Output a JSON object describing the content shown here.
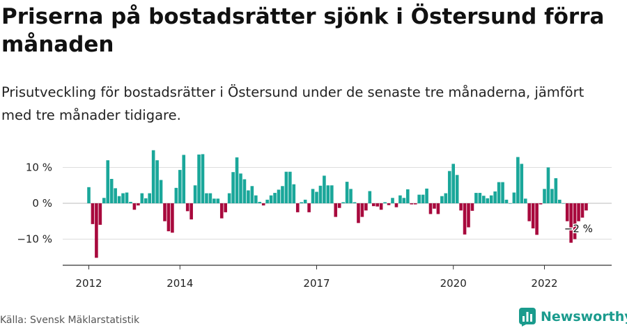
{
  "title": "Priserna på bostadsrätter sjönk i Östersund förra månaden",
  "subtitle": "Prisutveckling för bostadsrätter i Östersund under de senaste tre månaderna, jämfört med tre månader tidigare.",
  "source": "Källa: Svensk Mäklarstatistik",
  "brand": {
    "name": "Newsworthy",
    "icon": "newsworthy-logo-icon",
    "color": "#1a9b8d"
  },
  "colors": {
    "positive": "#1aa79a",
    "negative": "#a8093d",
    "grid": "#dddddd",
    "axis": "#333333"
  },
  "chart_data": {
    "type": "bar",
    "title": "Priserna på bostadsrätter sjönk i Östersund förra månaden",
    "xlabel": "",
    "ylabel": "",
    "ylim": [
      -17,
      15
    ],
    "y_ticks": [
      10,
      0,
      -10
    ],
    "y_tick_labels": [
      "10 %",
      "0 %",
      "−10 %"
    ],
    "x_ticks": [
      2012,
      2014,
      2017,
      2020,
      2022
    ],
    "x_tick_labels": [
      "2012",
      "2014",
      "2017",
      "2020",
      "2022"
    ],
    "x_start": "2012-01",
    "grid": true,
    "legend": "none",
    "annotation": {
      "month": "2023-01",
      "value": -2,
      "label": "−2 %"
    },
    "series": [
      {
        "values": [
          4.5,
          -5.8,
          -15.2,
          -6.0,
          1.5,
          12.0,
          6.8,
          4.2,
          2.0,
          2.8,
          3.0,
          0.4,
          -1.8,
          -0.6,
          2.8,
          1.4,
          2.8,
          14.8,
          12.0,
          6.5,
          -5.0,
          -7.8,
          -8.2,
          4.3,
          9.3,
          13.5,
          -2.2,
          -4.5,
          5.0,
          13.6,
          13.7,
          2.8,
          2.8,
          1.3,
          1.3,
          -4.2,
          -2.5,
          2.8,
          8.7,
          12.8,
          8.3,
          6.7,
          3.6,
          4.8,
          2.2,
          0.4,
          -0.6,
          1.0,
          2.2,
          2.9,
          3.8,
          4.8,
          8.8,
          8.8,
          5.3,
          -2.5,
          0.3,
          1.0,
          -2.5,
          4.0,
          3.2,
          4.9,
          7.7,
          5.0,
          5.0,
          -3.8,
          -1.3,
          0.3,
          6.0,
          4.0,
          0.3,
          -5.5,
          -3.8,
          -2.0,
          3.4,
          -0.8,
          -0.9,
          -1.8,
          0.3,
          -0.5,
          1.5,
          -1.1,
          2.2,
          1.5,
          3.9,
          -0.3,
          -0.3,
          2.4,
          2.4,
          4.1,
          -3.0,
          -1.5,
          -3.0,
          2.0,
          2.8,
          9.0,
          11.0,
          7.9,
          -2.0,
          -8.7,
          -6.7,
          -2.1,
          2.9,
          2.9,
          2.1,
          1.4,
          2.2,
          3.3,
          5.9,
          5.9,
          1.0,
          0.0,
          3.0,
          12.9,
          11.0,
          1.3,
          -5.0,
          -7.0,
          -8.8,
          -0.3,
          4.0,
          10.0,
          4.0,
          7.0,
          1.0,
          0.0,
          -5.0,
          -11.0,
          -10.0,
          -5.0,
          -4.0,
          -2.0
        ]
      }
    ]
  }
}
